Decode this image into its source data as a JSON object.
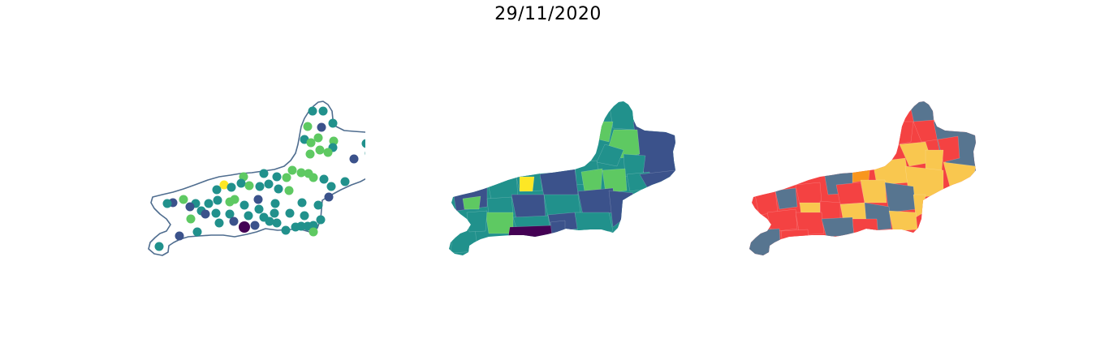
{
  "figure": {
    "title": "29/11/2020"
  },
  "colors": {
    "outline": "#4f6d8f",
    "viridis": [
      "#440154",
      "#3b528b",
      "#21918c",
      "#5ec962",
      "#fde725"
    ],
    "choropleth_base": "#21918c",
    "risk": {
      "red": "#f44242",
      "yellow": "#f9c74f",
      "slate": "#577590",
      "orange": "#f8961e"
    }
  },
  "panels": [
    {
      "id": "points",
      "kind": "scatter-map"
    },
    {
      "id": "choropleth-viridis",
      "kind": "choropleth"
    },
    {
      "id": "choropleth-risk",
      "kind": "choropleth"
    }
  ]
}
